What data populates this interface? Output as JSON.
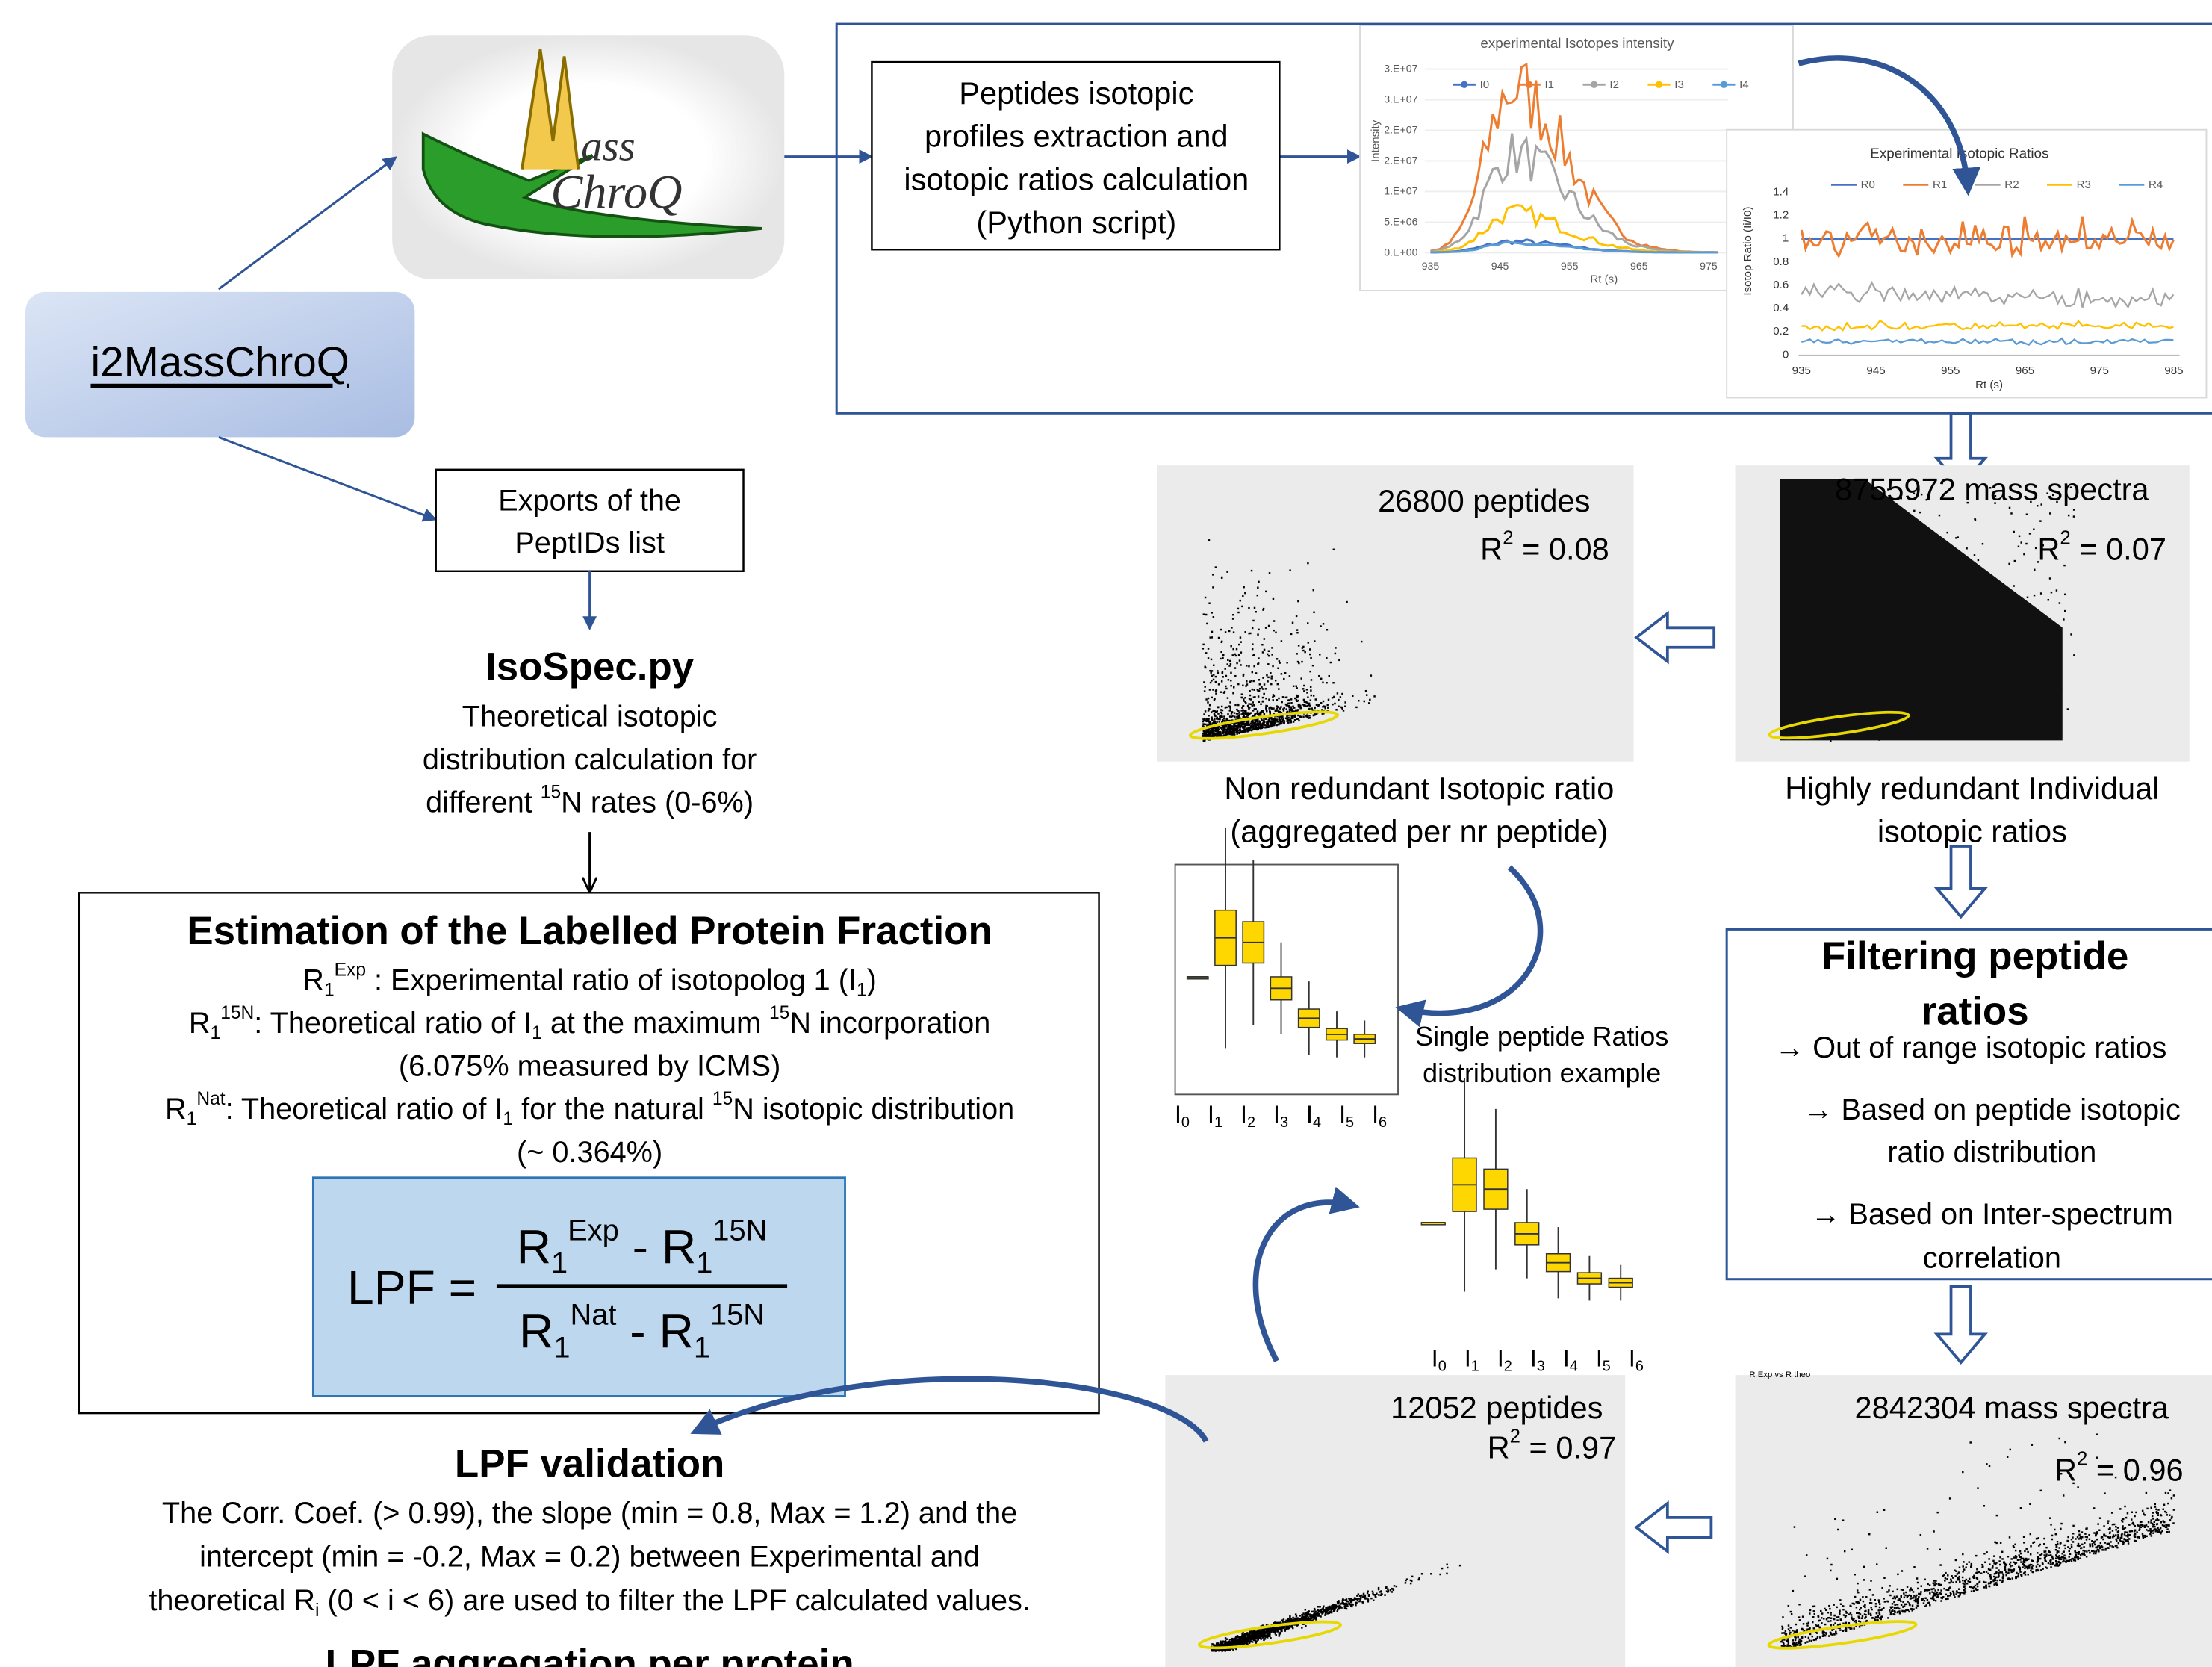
{
  "app_box": {
    "label": "i2MassChroQ"
  },
  "logo": {
    "top": "ass",
    "bottom": "ChroQ"
  },
  "extraction_box": {
    "lines": [
      "Peptides isotopic",
      "profiles extraction and",
      "isotopic ratios calculation",
      "(Python script)"
    ]
  },
  "intensity_chart": {
    "title": "experimental Isotopes intensity",
    "legend": [
      "I0",
      "I1",
      "I2",
      "I3",
      "I4"
    ],
    "yticks": [
      "3.E+07",
      "3.E+07",
      "2.E+07",
      "2.E+07",
      "1.E+07",
      "5.E+06",
      "0.E+00"
    ],
    "xticks": [
      935,
      945,
      955,
      965,
      975
    ],
    "xlabel": "Rt (s)",
    "ylabel": "Intensity"
  },
  "ratio_chart": {
    "title": "Experimental Isotopic Ratios",
    "legend": [
      "R0",
      "R1",
      "R2",
      "R3",
      "R4"
    ],
    "yticks": [
      1.4,
      1.2,
      1,
      0.8,
      0.6,
      0.4,
      0.2,
      0
    ],
    "xticks": [
      935,
      945,
      955,
      965,
      975,
      985
    ],
    "xlabel": "Rt (s)",
    "ylabel": "Isotop Ratio (Ii/I0)"
  },
  "export_box": {
    "lines": [
      "Exports of the",
      "PeptIDs list"
    ]
  },
  "isospec": {
    "title": "IsoSpec.py",
    "lines": [
      [
        {
          "text": "Theoretical isotopic"
        }
      ],
      [
        {
          "text": "distribution calculation for"
        }
      ],
      [
        {
          "text": "different "
        },
        {
          "sup": "15"
        },
        {
          "text": "N rates (0-6%)"
        }
      ]
    ]
  },
  "estimation": {
    "title": "Estimation of the Labelled Protein Fraction",
    "lines": [
      [
        {
          "text": "R"
        },
        {
          "sub": "1"
        },
        {
          "sup": "Exp"
        },
        {
          "text": " : Experimental ratio of isotopolog 1 (I"
        },
        {
          "sub": "1"
        },
        {
          "text": ")"
        }
      ],
      [
        {
          "text": "R"
        },
        {
          "sub": "1"
        },
        {
          "sup": "15N"
        },
        {
          "text": ": Theoretical ratio of I"
        },
        {
          "sub": "1"
        },
        {
          "text": "  at the maximum "
        },
        {
          "sup": "15"
        },
        {
          "text": "N incorporation"
        }
      ],
      [
        {
          "text": "(6.075% measured by ICMS)"
        }
      ],
      [
        {
          "text": "R"
        },
        {
          "sub": "1"
        },
        {
          "sup": "Nat"
        },
        {
          "text": ": Theoretical ratio of I"
        },
        {
          "sub": "1"
        },
        {
          "text": "  for the natural "
        },
        {
          "sup": "15"
        },
        {
          "text": "N isotopic distribution"
        }
      ],
      [
        {
          "text": "(~ 0.364%)"
        }
      ]
    ],
    "formula": {
      "lhs": "LPF =",
      "numerator": [
        {
          "text": "R"
        },
        {
          "sub": "1"
        },
        {
          "sup": "Exp"
        },
        {
          "text": " - R"
        },
        {
          "sub": "1"
        },
        {
          "sup": "15N"
        }
      ],
      "denominator": [
        {
          "text": "R"
        },
        {
          "sub": "1"
        },
        {
          "sup": "Nat"
        },
        {
          "text": " - R"
        },
        {
          "sub": "1"
        },
        {
          "sup": "15N"
        }
      ]
    }
  },
  "validation": {
    "title": "LPF validation",
    "lines": [
      [
        {
          "text": "The Corr. Coef. (> 0.99), the slope (min = 0.8, Max = 1.2) and the"
        }
      ],
      [
        {
          "text": "intercept (min = -0.2, Max = 0.2) between Experimental and"
        }
      ],
      [
        {
          "text": "theoretical R"
        },
        {
          "sub": "i"
        },
        {
          "text": " (0 < i < 6) are used to filter the LPF calculated values."
        }
      ]
    ]
  },
  "aggregation": {
    "title": "LPF aggregation per protein"
  },
  "scatter_plots": [
    {
      "count": "26800 peptides",
      "r2": [
        {
          "text": "R"
        },
        {
          "sup": "2"
        },
        {
          "text": " = 0.08"
        }
      ],
      "caption": [
        "Non redundant Isotopic ratio",
        "(aggregated per nr peptide)"
      ]
    },
    {
      "count": "8755972 mass spectra",
      "r2": [
        {
          "text": "R"
        },
        {
          "sup": "2"
        },
        {
          "text": " = 0.07"
        }
      ],
      "caption": [
        "Highly redundant Individual",
        "isotopic ratios"
      ]
    },
    {
      "count": "12052 peptides",
      "r2": [
        {
          "text": "R"
        },
        {
          "sup": "2"
        },
        {
          "text": " = 0.97"
        }
      ],
      "caption": []
    },
    {
      "count": "2842304 mass spectra",
      "r2": [
        {
          "text": "R"
        },
        {
          "sup": "2"
        },
        {
          "text": " = 0.96"
        }
      ],
      "caption": [],
      "plot_title": "R Exp vs R theo"
    }
  ],
  "boxplots": [
    {
      "caption": [
        "Single peptide Ratios",
        "distribution example"
      ],
      "labels": [
        [
          {
            "text": "I"
          },
          {
            "sub": "0"
          }
        ],
        [
          {
            "text": "I"
          },
          {
            "sub": "1"
          }
        ],
        [
          {
            "text": "I"
          },
          {
            "sub": "2"
          }
        ],
        [
          {
            "text": "I"
          },
          {
            "sub": "3"
          }
        ],
        [
          {
            "text": "I"
          },
          {
            "sub": "4"
          }
        ],
        [
          {
            "text": "I"
          },
          {
            "sub": "5"
          }
        ],
        [
          {
            "text": "I"
          },
          {
            "sub": "6"
          }
        ]
      ]
    },
    {
      "labels": [
        [
          {
            "text": "I"
          },
          {
            "sub": "0"
          }
        ],
        [
          {
            "text": "I"
          },
          {
            "sub": "1"
          }
        ],
        [
          {
            "text": "I"
          },
          {
            "sub": "2"
          }
        ],
        [
          {
            "text": "I"
          },
          {
            "sub": "3"
          }
        ],
        [
          {
            "text": "I"
          },
          {
            "sub": "4"
          }
        ],
        [
          {
            "text": "I"
          },
          {
            "sub": "5"
          }
        ],
        [
          {
            "text": "I"
          },
          {
            "sub": "6"
          }
        ]
      ]
    }
  ],
  "filtering": {
    "title": [
      "Filtering peptide",
      "ratios"
    ],
    "items": [
      [
        "→ Out of range isotopic ratios"
      ],
      [
        "→ Based on peptide isotopic",
        "ratio distribution"
      ],
      [
        "→ Based on Inter-spectrum",
        "correlation"
      ]
    ]
  }
}
